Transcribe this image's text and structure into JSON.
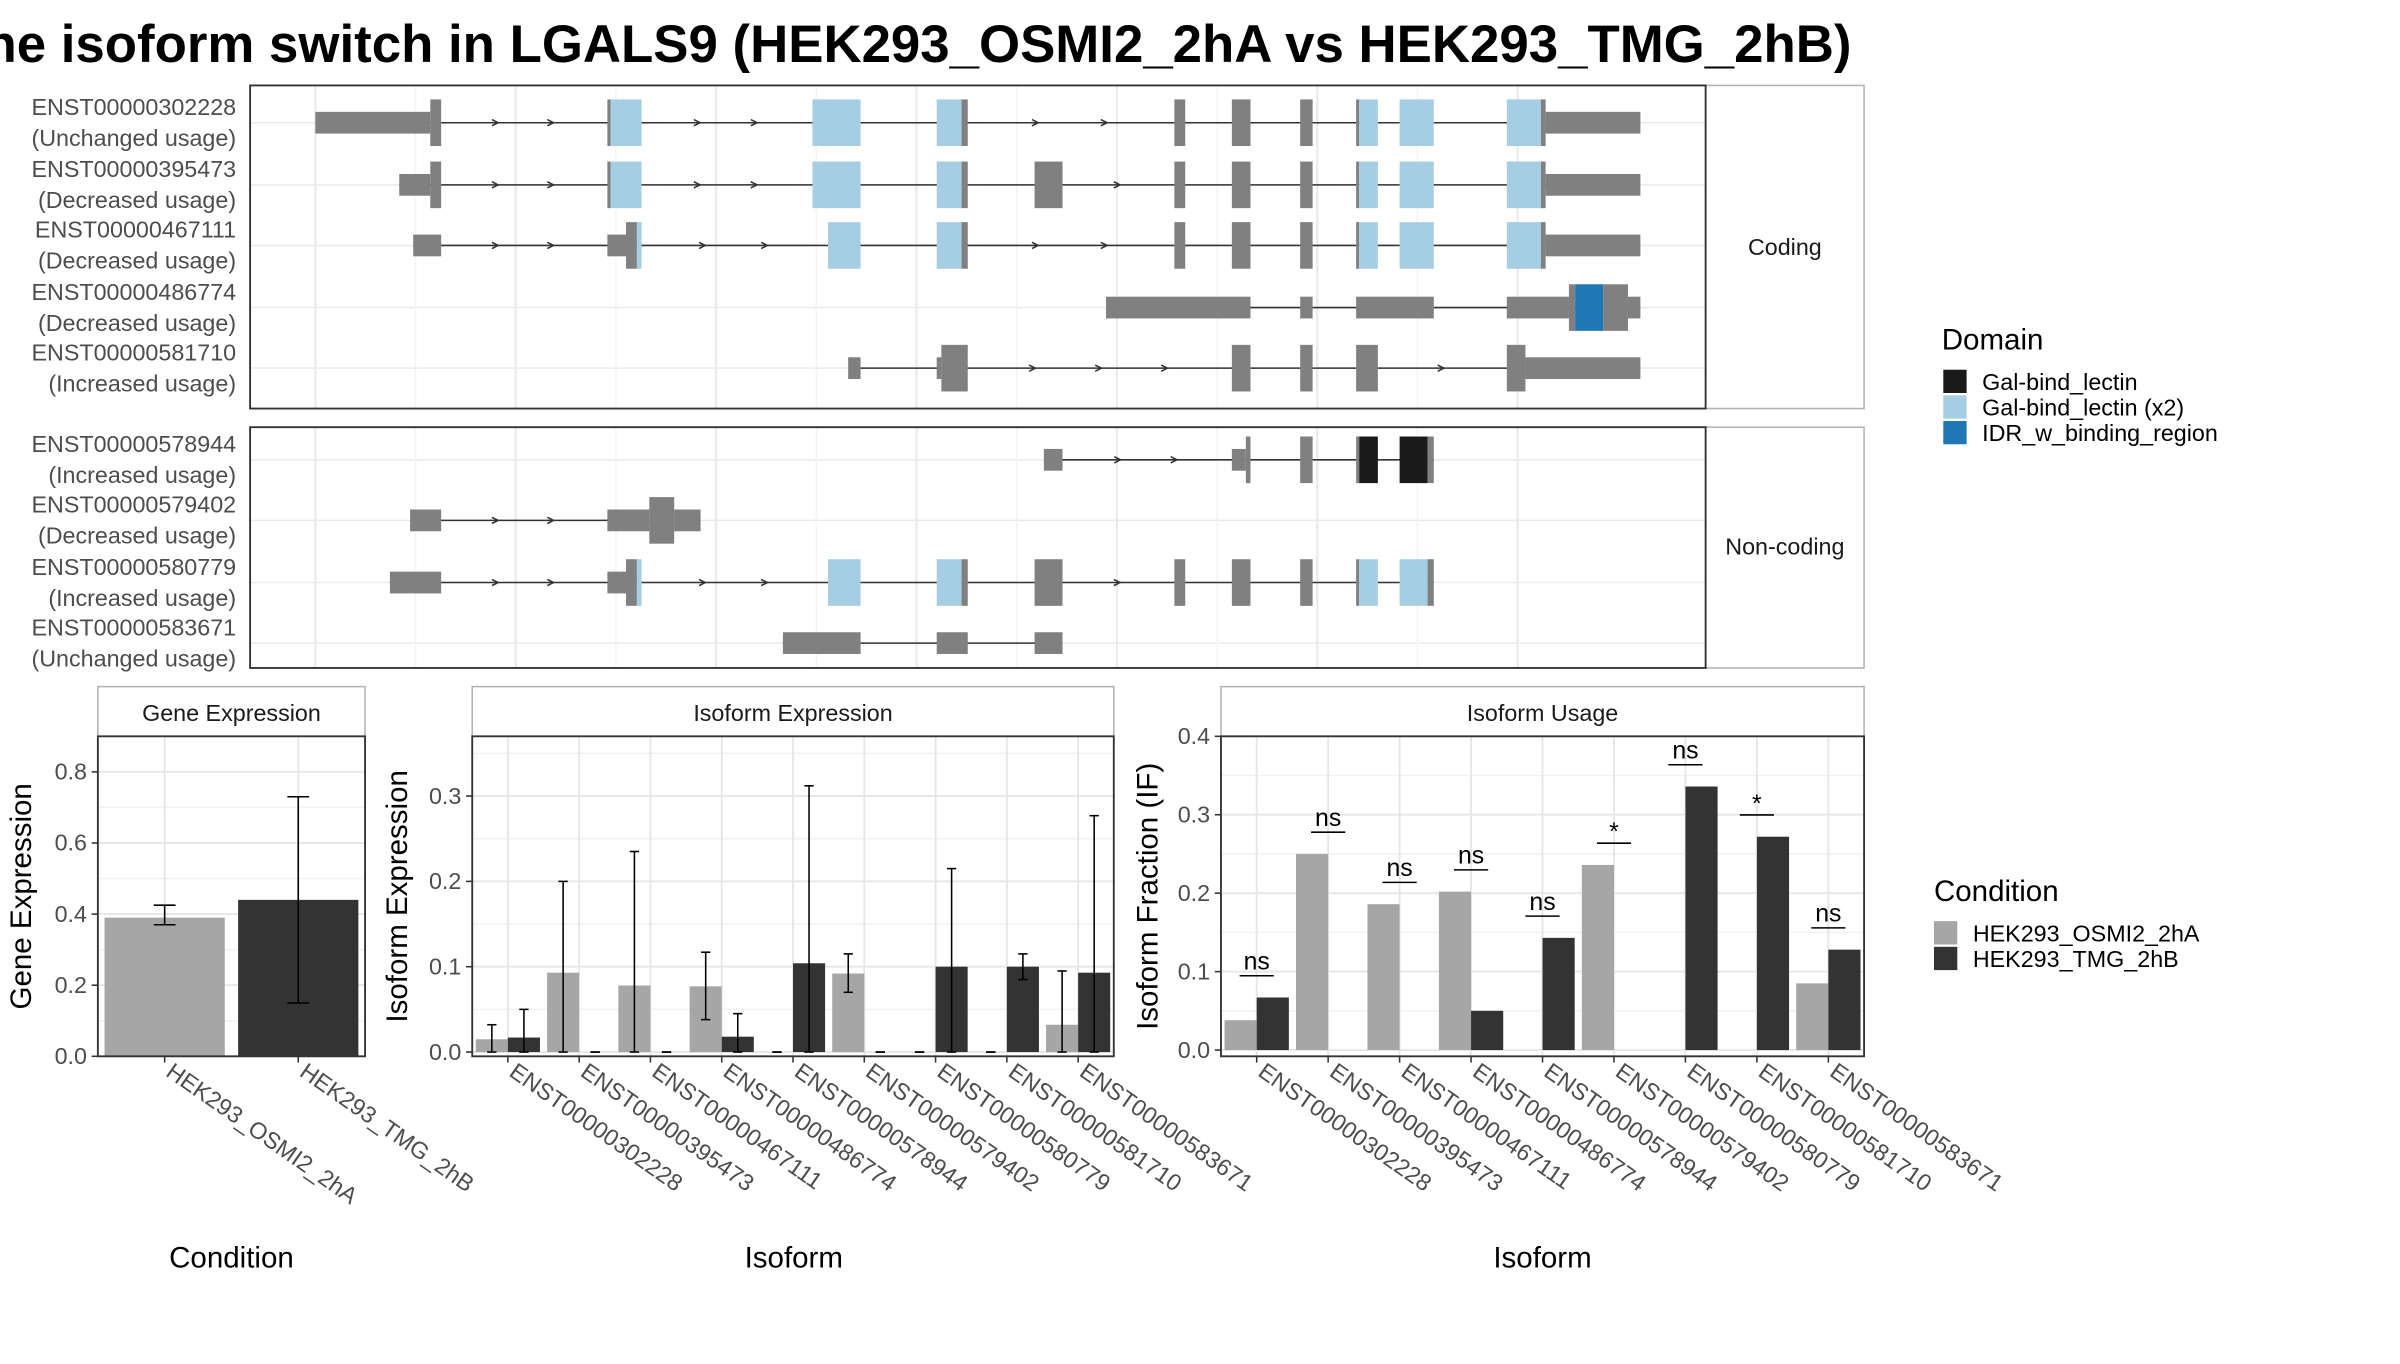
{
  "title": "he isoform switch in LGALS9 (HEK293_OSMI2_2hA vs HEK293_TMG_2hB)",
  "colors": {
    "exon": "#808080",
    "gal_bind_lectin": "#1a1a1a",
    "gal_bind_lectin_x2": "#a6cee3",
    "idr": "#1f78b4",
    "cond1": "#a6a6a6",
    "cond2": "#333333"
  },
  "facets": {
    "coding": "Coding",
    "noncoding": "Non-coding"
  },
  "domain_legend": {
    "title": "Domain",
    "items": [
      "Gal-bind_lectin",
      "Gal-bind_lectin (x2)",
      "IDR_w_binding_region"
    ]
  },
  "condition_legend": {
    "title": "Condition",
    "items": [
      "HEK293_OSMI2_2hA",
      "HEK293_TMG_2hB"
    ]
  },
  "transcripts": {
    "coding": [
      {
        "id": "ENST00000302228",
        "usage": "(Unchanged usage)"
      },
      {
        "id": "ENST00000395473",
        "usage": "(Decreased usage)"
      },
      {
        "id": "ENST00000467111",
        "usage": "(Decreased usage)"
      },
      {
        "id": "ENST00000486774",
        "usage": "(Decreased usage)"
      },
      {
        "id": "ENST00000581710",
        "usage": "(Increased usage)"
      }
    ],
    "noncoding": [
      {
        "id": "ENST00000578944",
        "usage": "(Increased usage)"
      },
      {
        "id": "ENST00000579402",
        "usage": "(Decreased usage)"
      },
      {
        "id": "ENST00000580779",
        "usage": "(Increased usage)"
      },
      {
        "id": "ENST00000583671",
        "usage": "(Unchanged usage)"
      }
    ]
  },
  "chart_data": [
    {
      "type": "bar",
      "title": "Gene Expression",
      "xlabel": "Condition",
      "ylabel": "Gene Expression",
      "categories": [
        "HEK293_OSMI2_2hA",
        "HEK293_TMG_2hB"
      ],
      "values": [
        0.39,
        0.44
      ],
      "error_low": [
        0.37,
        0.15
      ],
      "error_high": [
        0.425,
        0.73
      ],
      "ylim": [
        0,
        0.9
      ],
      "yticks": [
        "0.0",
        "0.2",
        "0.4",
        "0.6",
        "0.8"
      ]
    },
    {
      "type": "bar",
      "title": "Isoform Expression",
      "xlabel": "Isoform",
      "ylabel": "Isoform Expression",
      "categories": [
        "ENST00000302228",
        "ENST00000395473",
        "ENST00000467111",
        "ENST00000486774",
        "ENST00000578944",
        "ENST00000579402",
        "ENST00000580779",
        "ENST00000581710",
        "ENST00000583671"
      ],
      "series": [
        {
          "name": "HEK293_OSMI2_2hA",
          "values": [
            0.015,
            0.093,
            0.078,
            0.077,
            0.0,
            0.092,
            0.0,
            0.0,
            0.032
          ],
          "error_low": [
            0.0,
            0.0,
            0.0,
            0.038,
            0.0,
            0.07,
            0.0,
            0.0,
            0.0
          ],
          "error_high": [
            0.032,
            0.2,
            0.235,
            0.117,
            0.0,
            0.115,
            0.0,
            0.0,
            0.095
          ]
        },
        {
          "name": "HEK293_TMG_2hB",
          "values": [
            0.017,
            0.0,
            0.0,
            0.018,
            0.104,
            0.0,
            0.1,
            0.1,
            0.093
          ],
          "error_low": [
            0.0,
            0.0,
            0.0,
            0.0,
            0.0,
            0.0,
            0.0,
            0.085,
            0.0
          ],
          "error_high": [
            0.05,
            0.0,
            0.0,
            0.045,
            0.312,
            0.0,
            0.215,
            0.115,
            0.277
          ]
        }
      ],
      "ylim": [
        -0.005,
        0.37
      ],
      "yticks": [
        "0.0",
        "0.1",
        "0.2",
        "0.3"
      ]
    },
    {
      "type": "bar",
      "title": "Isoform Usage",
      "xlabel": "Isoform",
      "ylabel": "Isoform Fraction (IF)",
      "categories": [
        "ENST00000302228",
        "ENST00000395473",
        "ENST00000467111",
        "ENST00000486774",
        "ENST00000578944",
        "ENST00000579402",
        "ENST00000580779",
        "ENST00000581710",
        "ENST00000583671"
      ],
      "series": [
        {
          "name": "HEK293_OSMI2_2hA",
          "values": [
            0.038,
            0.25,
            0.186,
            0.202,
            0.0,
            0.236,
            0.0,
            0.0,
            0.085
          ]
        },
        {
          "name": "HEK293_TMG_2hB",
          "values": [
            0.067,
            0.0,
            0.0,
            0.05,
            0.143,
            0.0,
            0.336,
            0.272,
            0.128
          ]
        }
      ],
      "significance": [
        "ns",
        "ns",
        "ns",
        "ns",
        "ns",
        "*",
        "ns",
        "*",
        "ns"
      ],
      "ylim": [
        -0.008,
        0.4
      ],
      "yticks": [
        "0.0",
        "0.1",
        "0.2",
        "0.3",
        "0.4"
      ]
    }
  ]
}
